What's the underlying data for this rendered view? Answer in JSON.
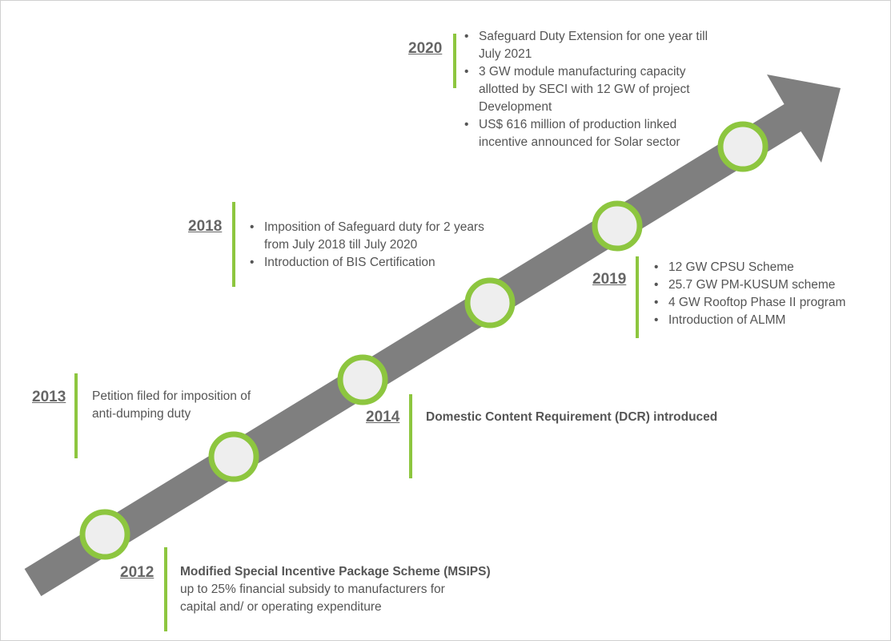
{
  "milestones": [
    {
      "year": "2012",
      "title": "Modified Special Incentive Package Scheme (MSIPS)",
      "lines": [
        "up to 25% financial subsidy to manufacturers for",
        "capital and/ or operating expenditure"
      ]
    },
    {
      "year": "2013",
      "lines": [
        "Petition filed for imposition of",
        "anti-dumping duty"
      ]
    },
    {
      "year": "2014",
      "title": "Domestic Content Requirement (DCR) introduced"
    },
    {
      "year": "2018",
      "items": [
        [
          "Imposition of Safeguard duty for 2 years",
          "from July 2018 till July 2020"
        ],
        [
          "Introduction of BIS Certification"
        ]
      ]
    },
    {
      "year": "2019",
      "items": [
        [
          "12 GW CPSU Scheme"
        ],
        [
          "25.7 GW PM-KUSUM scheme"
        ],
        [
          "4 GW Rooftop Phase II program"
        ],
        [
          "Introduction of ALMM"
        ]
      ]
    },
    {
      "year": "2020",
      "items": [
        [
          "Safeguard Duty Extension for one year till",
          "July 2021"
        ],
        [
          "3 GW module manufacturing capacity",
          "allotted by SECI with 12 GW of project",
          "Development"
        ],
        [
          "US$ 616 million of production linked",
          "incentive announced for Solar sector"
        ]
      ]
    }
  ]
}
